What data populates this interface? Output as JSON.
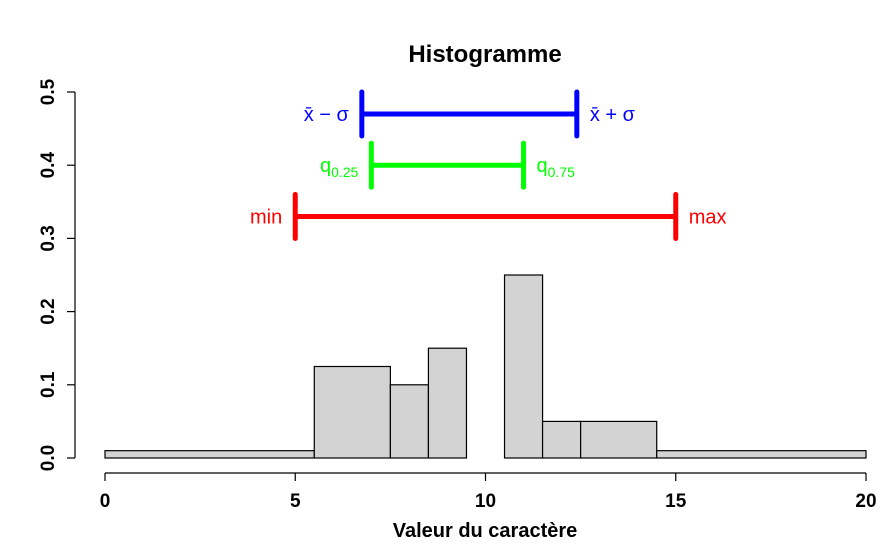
{
  "chart_data": {
    "type": "bar",
    "title": "Histogramme",
    "xlabel": "Valeur du caractère",
    "ylabel": "",
    "xlim": [
      0,
      20
    ],
    "ylim": [
      0,
      0.5
    ],
    "x_ticks": [
      "0",
      "5",
      "10",
      "15",
      "20"
    ],
    "y_ticks": [
      "0.0",
      "0.1",
      "0.2",
      "0.3",
      "0.4",
      "0.5"
    ],
    "bars": [
      {
        "x0": 0,
        "x1": 5.5,
        "value": 0.01
      },
      {
        "x0": 5.5,
        "x1": 7.5,
        "value": 0.125
      },
      {
        "x0": 7.5,
        "x1": 8.5,
        "value": 0.1
      },
      {
        "x0": 8.5,
        "x1": 9.5,
        "value": 0.15
      },
      {
        "x0": 9.5,
        "x1": 10.5,
        "value": 0
      },
      {
        "x0": 10.5,
        "x1": 11.5,
        "value": 0.25
      },
      {
        "x0": 11.5,
        "x1": 12.5,
        "value": 0.05
      },
      {
        "x0": 12.5,
        "x1": 14.5,
        "value": 0.05
      },
      {
        "x0": 14.5,
        "x1": 20,
        "value": 0.01
      }
    ],
    "bar_color": "#d3d3d3",
    "intervals": [
      {
        "name": "mean_sd",
        "left_label": "x̄ − σ",
        "right_label": "x̄ + σ",
        "from": 6.75,
        "to": 12.4,
        "y": 0.47,
        "color": "#0000ff"
      },
      {
        "name": "quartiles",
        "left_base": "q",
        "left_sub": "0.25",
        "right_base": "q",
        "right_sub": "0.75",
        "from": 7.0,
        "to": 11.0,
        "y": 0.4,
        "color": "#00ff00"
      },
      {
        "name": "range",
        "left_label": "min",
        "right_label": "max",
        "from": 5.0,
        "to": 15.0,
        "y": 0.33,
        "color": "#ff0000"
      }
    ]
  }
}
